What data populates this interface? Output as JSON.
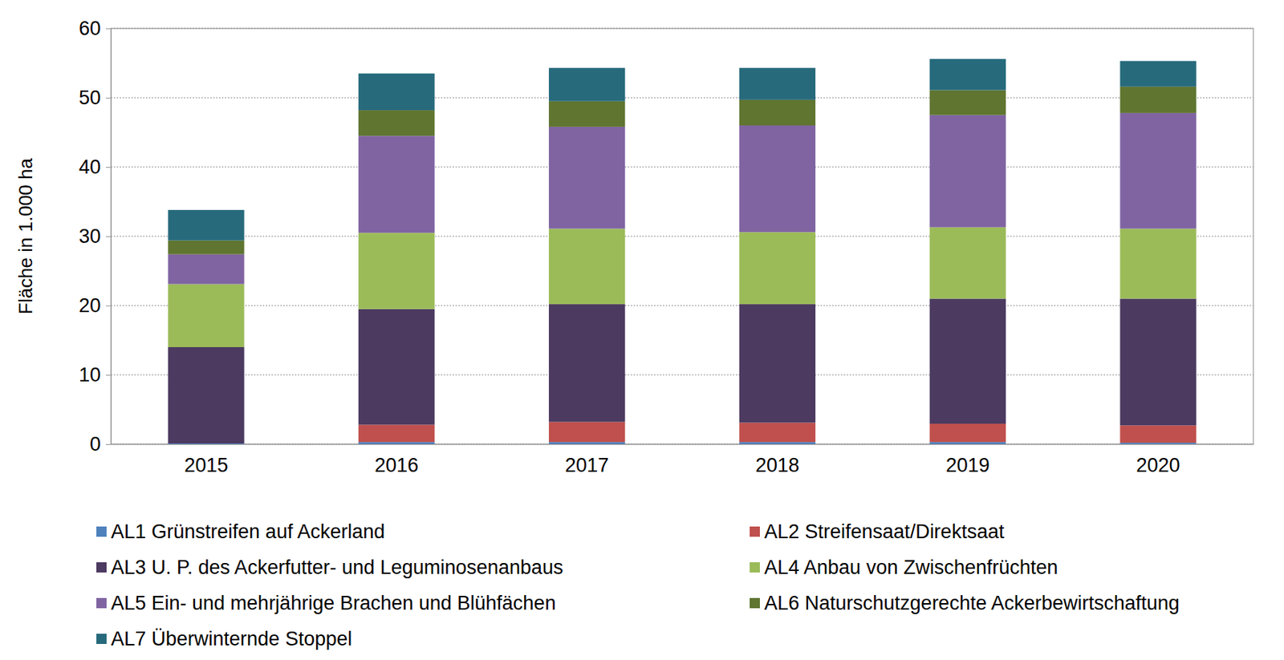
{
  "chart_data": {
    "type": "bar",
    "stacked": true,
    "grid": true,
    "y_label": "Fläche in 1.000 ha",
    "categories": [
      "2015",
      "2016",
      "2017",
      "2018",
      "2019",
      "2020"
    ],
    "ylim": [
      0,
      60
    ],
    "yticks": [
      0,
      10,
      20,
      30,
      40,
      50,
      60
    ],
    "series": [
      {
        "name": "AL1 Grünstreifen auf Ackerland",
        "color": "#4f81bd",
        "values": [
          0.1,
          0.3,
          0.3,
          0.3,
          0.3,
          0.2
        ]
      },
      {
        "name": "AL2 Streifensaat/Direktsaat",
        "color": "#c0504d",
        "values": [
          0,
          2.5,
          2.9,
          2.8,
          2.65,
          2.5
        ]
      },
      {
        "name": "AL3 U. P. des Ackerfutter- und Leguminosenanbaus",
        "color": "#4c3a60",
        "values": [
          13.9,
          16.7,
          17.0,
          17.1,
          18.05,
          18.3
        ]
      },
      {
        "name": "AL4 Anbau von Zwischenfrüchten",
        "color": "#9bbb59",
        "values": [
          9.1,
          11.0,
          10.9,
          10.4,
          10.3,
          10.1
        ]
      },
      {
        "name": "AL5 Ein- und mehrjährige Brachen und Blühfächen",
        "color": "#8064a2",
        "values": [
          4.3,
          14.0,
          14.7,
          15.4,
          16.2,
          16.7
        ]
      },
      {
        "name": "AL6 Naturschutzgerechte Ackerbewirtschaftung",
        "color": "#5f7530",
        "values": [
          2.0,
          3.7,
          3.7,
          3.7,
          3.6,
          3.8
        ]
      },
      {
        "name": "AL7 Überwinternde Stoppel",
        "color": "#276a7c",
        "values": [
          4.4,
          5.3,
          4.8,
          4.6,
          4.5,
          3.7
        ]
      }
    ]
  }
}
